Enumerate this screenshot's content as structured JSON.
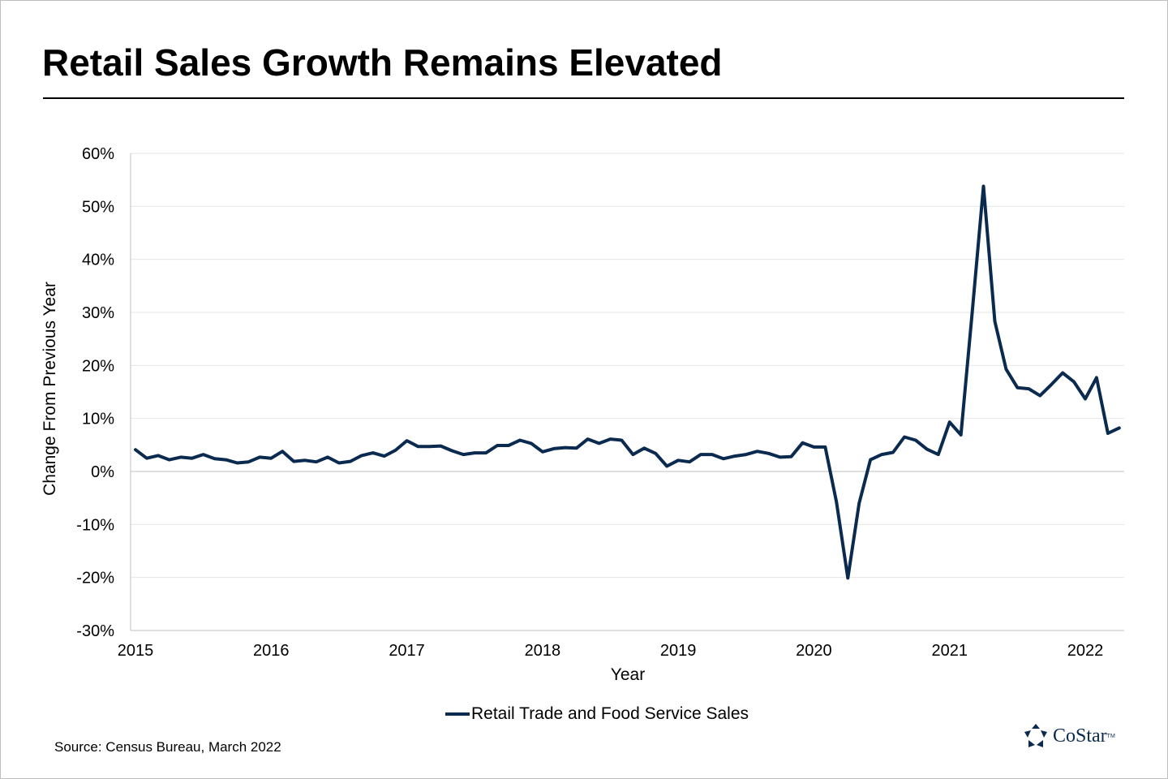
{
  "title": "Retail Sales Growth Remains Elevated",
  "source": "Source: Census Bureau, March 2022",
  "logo": {
    "name": "CoStar",
    "tm": "TM"
  },
  "colors": {
    "series": "#0b2a4f",
    "grid": "#e6e6e6",
    "axis": "#bfbfbf"
  },
  "chart_data": {
    "type": "line",
    "xlabel": "Year",
    "ylabel": "Change From Previous Year",
    "xlim": [
      2015,
      2022.3
    ],
    "ylim": [
      -30,
      60
    ],
    "x_ticks": [
      2015,
      2016,
      2017,
      2018,
      2019,
      2020,
      2021,
      2022
    ],
    "x_tick_labels": [
      "2015",
      "2016",
      "2017",
      "2018",
      "2019",
      "2020",
      "2021",
      "2022"
    ],
    "y_ticks": [
      60,
      50,
      40,
      30,
      20,
      10,
      0,
      -10,
      -20,
      -30
    ],
    "y_tick_labels": [
      "60%",
      "50%",
      "40%",
      "30%",
      "20%",
      "10%",
      "0%",
      "-10%",
      "-20%",
      "-30%"
    ],
    "grid": true,
    "legend_position": "bottom",
    "series": [
      {
        "name": "Retail Trade and Food Service Sales",
        "color": "#0b2a4f",
        "x": [
          "2015-01",
          "2015-02",
          "2015-03",
          "2015-04",
          "2015-05",
          "2015-06",
          "2015-07",
          "2015-08",
          "2015-09",
          "2015-10",
          "2015-11",
          "2015-12",
          "2016-01",
          "2016-02",
          "2016-03",
          "2016-04",
          "2016-05",
          "2016-06",
          "2016-07",
          "2016-08",
          "2016-09",
          "2016-10",
          "2016-11",
          "2016-12",
          "2017-01",
          "2017-02",
          "2017-03",
          "2017-04",
          "2017-05",
          "2017-06",
          "2017-07",
          "2017-08",
          "2017-09",
          "2017-10",
          "2017-11",
          "2017-12",
          "2018-01",
          "2018-02",
          "2018-03",
          "2018-04",
          "2018-05",
          "2018-06",
          "2018-07",
          "2018-08",
          "2018-09",
          "2018-10",
          "2018-11",
          "2018-12",
          "2019-01",
          "2019-02",
          "2019-03",
          "2019-04",
          "2019-05",
          "2019-06",
          "2019-07",
          "2019-08",
          "2019-09",
          "2019-10",
          "2019-11",
          "2019-12",
          "2020-01",
          "2020-02",
          "2020-03",
          "2020-04",
          "2020-05",
          "2020-06",
          "2020-07",
          "2020-08",
          "2020-09",
          "2020-10",
          "2020-11",
          "2020-12",
          "2021-01",
          "2021-02",
          "2021-03",
          "2021-04",
          "2021-05",
          "2021-06",
          "2021-07",
          "2021-08",
          "2021-09",
          "2021-10",
          "2021-11",
          "2021-12",
          "2022-01",
          "2022-02",
          "2022-03",
          "2022-04"
        ],
        "values": [
          4.1,
          2.5,
          3.0,
          2.2,
          2.7,
          2.5,
          3.2,
          2.4,
          2.2,
          1.6,
          1.8,
          2.7,
          2.5,
          3.8,
          1.9,
          2.1,
          1.8,
          2.7,
          1.6,
          1.9,
          3.0,
          3.5,
          2.9,
          4.0,
          5.8,
          4.7,
          4.7,
          4.8,
          3.9,
          3.2,
          3.5,
          3.5,
          4.9,
          4.9,
          5.9,
          5.3,
          3.7,
          4.3,
          4.5,
          4.4,
          6.1,
          5.3,
          6.1,
          5.9,
          3.2,
          4.4,
          3.4,
          1.0,
          2.1,
          1.8,
          3.2,
          3.2,
          2.4,
          2.9,
          3.2,
          3.8,
          3.4,
          2.7,
          2.8,
          5.4,
          4.6,
          4.6,
          -5.8,
          -20.1,
          -6.0,
          2.2,
          3.2,
          3.6,
          6.5,
          5.9,
          4.2,
          3.2,
          9.3,
          6.9,
          30.0,
          53.8,
          28.3,
          19.3,
          15.8,
          15.6,
          14.3,
          16.4,
          18.6,
          16.9,
          13.7,
          17.7,
          7.2,
          8.2
        ]
      }
    ]
  }
}
